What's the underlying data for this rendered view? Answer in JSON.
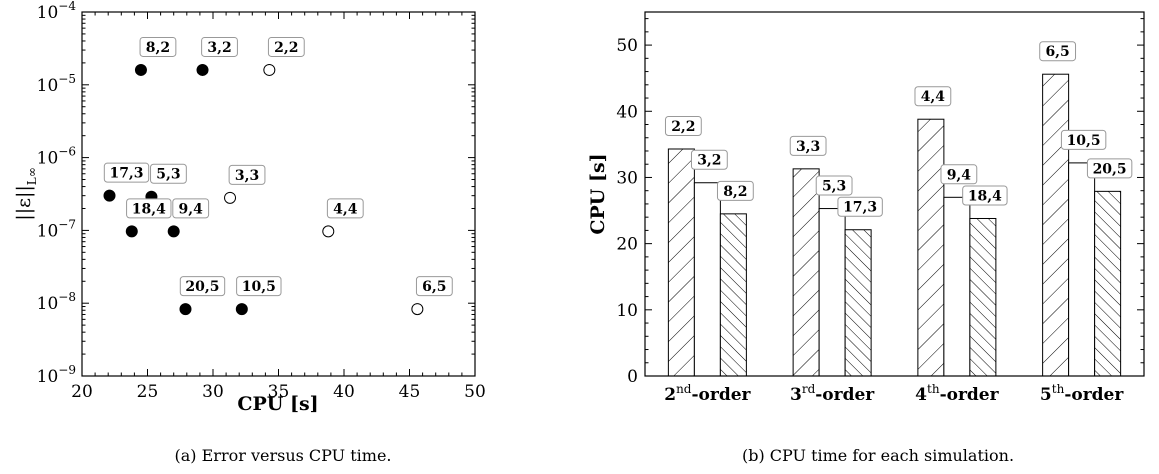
{
  "chart_data": [
    {
      "type": "scatter",
      "caption": "(a) Error versus CPU time.",
      "xlabel": "CPU [s]",
      "ylabel": "||ε||",
      "ylabel_subscript": "L∞",
      "yscale": "log",
      "xlim": [
        20,
        50
      ],
      "ylim": [
        1e-09,
        0.0001
      ],
      "xticks": [
        20,
        25,
        30,
        35,
        40,
        45,
        50
      ],
      "yticks": [
        {
          "value": 1e-09,
          "base": "10",
          "exp": "−9"
        },
        {
          "value": 1e-08,
          "base": "10",
          "exp": "−8"
        },
        {
          "value": 1e-07,
          "base": "10",
          "exp": "−7"
        },
        {
          "value": 1e-06,
          "base": "10",
          "exp": "−6"
        },
        {
          "value": 1e-05,
          "base": "10",
          "exp": "−5"
        },
        {
          "value": 0.0001,
          "base": "10",
          "exp": "−4"
        }
      ],
      "points": [
        {
          "label": "8,2",
          "x": 24.5,
          "y": 1.6e-05,
          "filled": true
        },
        {
          "label": "3,2",
          "x": 29.2,
          "y": 1.6e-05,
          "filled": true
        },
        {
          "label": "2,2",
          "x": 34.3,
          "y": 1.6e-05,
          "filled": false
        },
        {
          "label": "17,3",
          "x": 22.1,
          "y": 3e-07,
          "filled": true
        },
        {
          "label": "5,3",
          "x": 25.3,
          "y": 2.9e-07,
          "filled": true
        },
        {
          "label": "3,3",
          "x": 31.3,
          "y": 2.8e-07,
          "filled": false
        },
        {
          "label": "18,4",
          "x": 23.8,
          "y": 9.7e-08,
          "filled": true
        },
        {
          "label": "9,4",
          "x": 27.0,
          "y": 9.7e-08,
          "filled": true
        },
        {
          "label": "4,4",
          "x": 38.8,
          "y": 9.7e-08,
          "filled": false
        },
        {
          "label": "20,5",
          "x": 27.9,
          "y": 8.3e-09,
          "filled": true
        },
        {
          "label": "10,5",
          "x": 32.2,
          "y": 8.3e-09,
          "filled": true
        },
        {
          "label": "6,5",
          "x": 45.6,
          "y": 8.3e-09,
          "filled": false
        }
      ]
    },
    {
      "type": "bar",
      "caption": "(b) CPU time for each simulation.",
      "ylabel": "CPU [s]",
      "ylim": [
        0,
        55
      ],
      "yticks": [
        0,
        10,
        20,
        30,
        40,
        50
      ],
      "categories": [
        {
          "num": "2",
          "sup": "nd",
          "suffix": "-order"
        },
        {
          "num": "3",
          "sup": "rd",
          "suffix": "-order"
        },
        {
          "num": "4",
          "sup": "th",
          "suffix": "-order"
        },
        {
          "num": "5",
          "sup": "th",
          "suffix": "-order"
        }
      ],
      "series": [
        {
          "hatch": "backslash",
          "values": [
            34.3,
            31.3,
            38.8,
            45.6
          ],
          "labels": [
            "2,2",
            "3,3",
            "4,4",
            "6,5"
          ]
        },
        {
          "hatch": "none",
          "values": [
            29.2,
            25.3,
            27.0,
            32.2
          ],
          "labels": [
            "3,2",
            "5,3",
            "9,4",
            "10,5"
          ]
        },
        {
          "hatch": "slash",
          "values": [
            24.5,
            22.1,
            23.8,
            27.9
          ],
          "labels": [
            "8,2",
            "17,3",
            "18,4",
            "20,5"
          ]
        }
      ]
    }
  ]
}
